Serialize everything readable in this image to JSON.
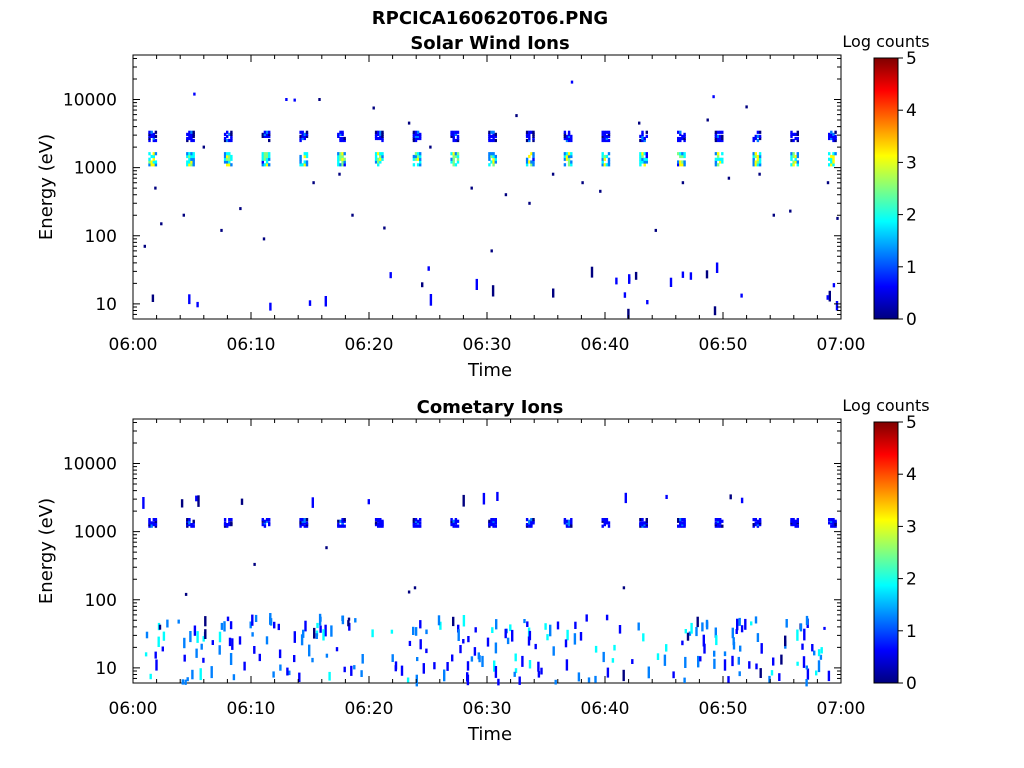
{
  "figure": {
    "title": "RPCICA160620T06.PNG",
    "colors": [
      "#00007f",
      "#0000ff",
      "#0080ff",
      "#00ffff",
      "#80ff80",
      "#ffff00",
      "#ff8000",
      "#ff0000",
      "#7f0000"
    ]
  },
  "chart_data": [
    {
      "type": "heatmap",
      "title": "Solar Wind Ions",
      "xlabel": "Time",
      "ylabel": "Energy (eV)",
      "yscale": "log",
      "xlim": [
        "06:00",
        "07:00"
      ],
      "ylim": [
        6,
        45000
      ],
      "x_ticks": [
        "06:00",
        "06:10",
        "06:20",
        "06:30",
        "06:40",
        "06:50",
        "07:00"
      ],
      "y_ticks": [
        "10",
        "100",
        "1000",
        "10000"
      ],
      "colorbar": {
        "label": "Log counts",
        "range": [
          0,
          5
        ],
        "ticks": [
          "0",
          "1",
          "2",
          "3",
          "4",
          "5"
        ]
      },
      "features": [
        {
          "description": "periodic main ion beam",
          "start_min": 1.3,
          "period_min": 3.2,
          "energy_eV": [
            1100,
            1600
          ],
          "log_counts": 2.6
        },
        {
          "description": "periodic secondary ion beam",
          "start_min": 1.3,
          "period_min": 3.2,
          "energy_eV": [
            2500,
            3300
          ],
          "log_counts": 1.0
        },
        {
          "description": "sparse low-energy counts",
          "energy_eV": [
            7,
            40
          ],
          "log_counts": 0.7
        }
      ],
      "points": [
        [
          0.9,
          70,
          0.6
        ],
        [
          1.8,
          500,
          0.6
        ],
        [
          2.3,
          150,
          0.6
        ],
        [
          4.2,
          200,
          0.6
        ],
        [
          5.1,
          12000,
          0.7
        ],
        [
          5.9,
          2000,
          0.6
        ],
        [
          7.4,
          120,
          0.6
        ],
        [
          9.0,
          250,
          0.6
        ],
        [
          11.0,
          90,
          0.6
        ],
        [
          12.9,
          10000,
          0.7
        ],
        [
          13.6,
          9800,
          0.7
        ],
        [
          15.2,
          600,
          0.6
        ],
        [
          15.7,
          10000,
          0.6
        ],
        [
          17.4,
          800,
          0.6
        ],
        [
          18.5,
          200,
          0.6
        ],
        [
          20.3,
          7500,
          0.6
        ],
        [
          21.2,
          130,
          0.6
        ],
        [
          23.3,
          4500,
          0.6
        ],
        [
          25.1,
          2000,
          0.6
        ],
        [
          28.6,
          500,
          0.6
        ],
        [
          30.3,
          60,
          0.6
        ],
        [
          31.5,
          400,
          0.6
        ],
        [
          32.4,
          5800,
          0.6
        ],
        [
          33.5,
          300,
          0.6
        ],
        [
          35.5,
          800,
          0.6
        ],
        [
          37.1,
          18000,
          0.7
        ],
        [
          38.0,
          600,
          0.6
        ],
        [
          39.5,
          450,
          0.6
        ],
        [
          42.8,
          4500,
          0.6
        ],
        [
          44.2,
          120,
          0.6
        ],
        [
          46.5,
          600,
          0.6
        ],
        [
          48.6,
          5000,
          0.6
        ],
        [
          49.1,
          11000,
          0.7
        ],
        [
          50.4,
          700,
          0.6
        ],
        [
          51.9,
          7800,
          0.6
        ],
        [
          53.0,
          800,
          0.6
        ],
        [
          54.2,
          200,
          0.6
        ],
        [
          55.6,
          230,
          0.6
        ],
        [
          58.8,
          600,
          0.6
        ],
        [
          59.6,
          180,
          0.6
        ]
      ]
    },
    {
      "type": "heatmap",
      "title": "Cometary Ions",
      "xlabel": "Time",
      "ylabel": "Energy (eV)",
      "yscale": "log",
      "xlim": [
        "06:00",
        "07:00"
      ],
      "ylim": [
        6,
        45000
      ],
      "x_ticks": [
        "06:00",
        "06:10",
        "06:20",
        "06:30",
        "06:40",
        "06:50",
        "07:00"
      ],
      "y_ticks": [
        "10",
        "100",
        "1000",
        "10000"
      ],
      "colorbar": {
        "label": "Log counts",
        "range": [
          0,
          5
        ],
        "ticks": [
          "0",
          "1",
          "2",
          "3",
          "4",
          "5"
        ]
      },
      "features": [
        {
          "description": "weak periodic beam",
          "start_min": 1.3,
          "period_min": 3.2,
          "energy_eV": [
            1200,
            1500
          ],
          "log_counts": 1.0
        },
        {
          "description": "sparse upper counts",
          "energy_eV": [
            2600,
            3300
          ],
          "log_counts": 0.6
        },
        {
          "description": "low-energy cometary ion bursts",
          "energy_eV": [
            6,
            55
          ],
          "log_counts": 1.3
        }
      ],
      "points": [
        [
          4.4,
          120,
          0.6
        ],
        [
          10.2,
          330,
          0.6
        ],
        [
          16.3,
          580,
          0.6
        ],
        [
          18.2,
          52,
          0.6
        ],
        [
          23.3,
          130,
          0.6
        ],
        [
          23.8,
          150,
          0.6
        ],
        [
          41.5,
          150,
          0.6
        ],
        [
          58.5,
          38,
          0.7
        ]
      ]
    }
  ]
}
